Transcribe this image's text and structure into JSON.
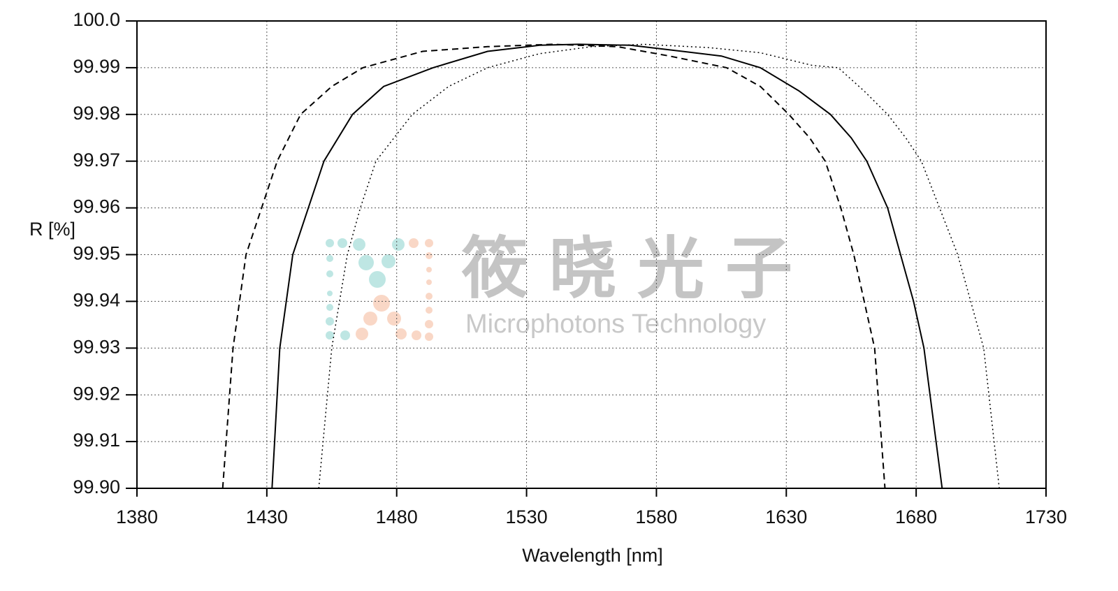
{
  "chart_data": {
    "type": "line",
    "x_label": "Wavelength [nm]",
    "y_label": "R [%]",
    "xlim": [
      1380,
      1730
    ],
    "xticks": [
      1380,
      1430,
      1480,
      1530,
      1580,
      1630,
      1680,
      1730
    ],
    "ylim": [
      99.9,
      100
    ],
    "yticks": [
      {
        "value": 99.9,
        "label": "99.90"
      },
      99.91,
      99.92,
      99.93,
      99.94,
      99.95,
      99.96,
      99.97,
      99.98,
      99.99,
      {
        "value": 100,
        "label": "100.0"
      }
    ],
    "grid": true,
    "watermark": {
      "title": "筱晓光子",
      "subtitle": "Microphotons Technology"
    },
    "series": [
      {
        "color": "#000000",
        "style": "dashed",
        "x": [
          1413,
          1417,
          1422,
          1428,
          1434,
          1443,
          1455,
          1467,
          1490,
          1515,
          1540,
          1565,
          1585,
          1607,
          1620,
          1631,
          1639,
          1645,
          1651,
          1656,
          1660,
          1664,
          1668
        ],
        "values": [
          99.9,
          99.93,
          99.95,
          99.96,
          99.97,
          99.98,
          99.986,
          99.99,
          99.9935,
          99.9945,
          99.995,
          99.9945,
          99.9925,
          99.99,
          99.986,
          99.98,
          99.975,
          99.97,
          99.96,
          99.95,
          99.94,
          99.93,
          99.9
        ]
      },
      {
        "color": "#000000",
        "style": "solid",
        "x": [
          1432,
          1435,
          1440,
          1446,
          1452,
          1463,
          1475,
          1494,
          1515,
          1535,
          1550,
          1570,
          1590,
          1605,
          1620,
          1635,
          1647,
          1655,
          1661,
          1669,
          1674,
          1679,
          1683,
          1690
        ],
        "values": [
          99.9,
          99.93,
          99.95,
          99.96,
          99.97,
          99.98,
          99.986,
          99.99,
          99.9935,
          99.9948,
          99.995,
          99.9948,
          99.9935,
          99.9925,
          99.99,
          99.985,
          99.98,
          99.975,
          99.97,
          99.96,
          99.95,
          99.94,
          99.93,
          99.9
        ]
      },
      {
        "color": "#000000",
        "style": "dotted",
        "x": [
          1450,
          1455,
          1461,
          1466,
          1472,
          1486,
          1500,
          1515,
          1535,
          1555,
          1575,
          1600,
          1620,
          1640,
          1650,
          1660,
          1669,
          1676,
          1682,
          1689,
          1696,
          1701,
          1706,
          1712
        ],
        "values": [
          99.9,
          99.93,
          99.95,
          99.96,
          99.97,
          99.98,
          99.986,
          99.99,
          99.993,
          99.9945,
          99.995,
          99.9943,
          99.9932,
          99.9905,
          99.99,
          99.985,
          99.98,
          99.975,
          99.97,
          99.96,
          99.95,
          99.94,
          99.93,
          99.9
        ]
      }
    ]
  }
}
